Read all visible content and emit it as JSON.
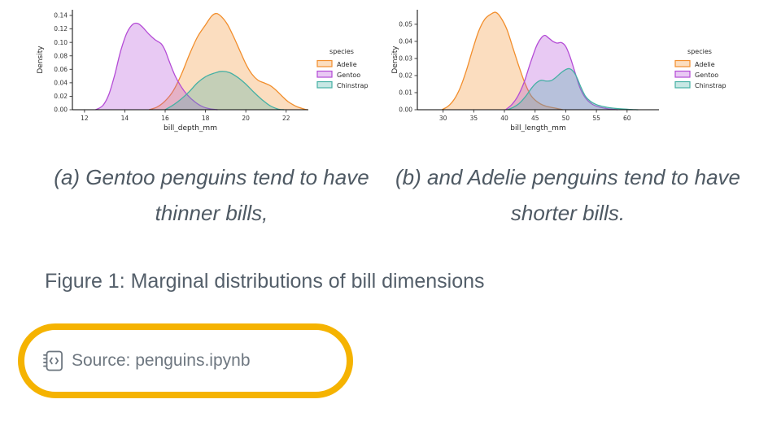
{
  "subcaptions": {
    "a": "(a) Gentoo penguins tend to have thinner bills,",
    "b": "(b) and Adelie penguins tend to have shorter bills."
  },
  "figure_caption": "Figure 1: Marginal distributions of bill dimensions",
  "source": {
    "icon": "journal-code-icon",
    "prefix": "Source:",
    "file": "penguins.ipynb"
  },
  "annotation": {
    "shape": "rounded-rectangle-highlight",
    "color": "#f5b301"
  },
  "chart_data": [
    {
      "type": "area",
      "kind": "kde-density",
      "xlabel": "bill_depth_mm",
      "ylabel": "Density",
      "xlim": [
        11.4,
        23.1
      ],
      "ylim": [
        0,
        0.1485
      ],
      "xticks": [
        12,
        14,
        16,
        18,
        20,
        22
      ],
      "yticks": [
        "0.00",
        "0.02",
        "0.04",
        "0.06",
        "0.08",
        "0.10",
        "0.12",
        "0.14"
      ],
      "legend_title": "species",
      "fill_opacity": 0.3,
      "series": [
        {
          "name": "Adelie",
          "color": "#f28e2c",
          "points": [
            [
              15.2,
              0
            ],
            [
              15.6,
              0.004
            ],
            [
              16.0,
              0.013
            ],
            [
              16.4,
              0.028
            ],
            [
              16.8,
              0.052
            ],
            [
              17.2,
              0.082
            ],
            [
              17.6,
              0.108
            ],
            [
              18.0,
              0.126
            ],
            [
              18.3,
              0.139
            ],
            [
              18.55,
              0.143
            ],
            [
              18.8,
              0.138
            ],
            [
              19.1,
              0.126
            ],
            [
              19.4,
              0.108
            ],
            [
              19.7,
              0.088
            ],
            [
              20.0,
              0.068
            ],
            [
              20.3,
              0.053
            ],
            [
              20.6,
              0.044
            ],
            [
              20.9,
              0.04
            ],
            [
              21.2,
              0.036
            ],
            [
              21.5,
              0.029
            ],
            [
              21.8,
              0.02
            ],
            [
              22.1,
              0.012
            ],
            [
              22.5,
              0.005
            ],
            [
              22.9,
              0.001
            ],
            [
              23.05,
              0
            ]
          ]
        },
        {
          "name": "Gentoo",
          "color": "#b44bd6",
          "points": [
            [
              12.55,
              0
            ],
            [
              12.9,
              0.006
            ],
            [
              13.2,
              0.022
            ],
            [
              13.5,
              0.052
            ],
            [
              13.8,
              0.088
            ],
            [
              14.1,
              0.114
            ],
            [
              14.4,
              0.127
            ],
            [
              14.65,
              0.128
            ],
            [
              14.9,
              0.122
            ],
            [
              15.2,
              0.112
            ],
            [
              15.5,
              0.104
            ],
            [
              15.8,
              0.098
            ],
            [
              16.0,
              0.088
            ],
            [
              16.2,
              0.072
            ],
            [
              16.5,
              0.05
            ],
            [
              16.8,
              0.034
            ],
            [
              17.1,
              0.022
            ],
            [
              17.5,
              0.011
            ],
            [
              17.9,
              0.004
            ],
            [
              18.3,
              0.001
            ],
            [
              18.6,
              0
            ]
          ]
        },
        {
          "name": "Chinstrap",
          "color": "#45b0a4",
          "points": [
            [
              16.0,
              0
            ],
            [
              16.4,
              0.007
            ],
            [
              16.8,
              0.016
            ],
            [
              17.2,
              0.027
            ],
            [
              17.6,
              0.04
            ],
            [
              18.0,
              0.049
            ],
            [
              18.4,
              0.054
            ],
            [
              18.8,
              0.057
            ],
            [
              19.2,
              0.055
            ],
            [
              19.6,
              0.048
            ],
            [
              20.0,
              0.038
            ],
            [
              20.4,
              0.026
            ],
            [
              20.8,
              0.015
            ],
            [
              21.2,
              0.006
            ],
            [
              21.6,
              0.001
            ],
            [
              21.9,
              0
            ]
          ]
        }
      ]
    },
    {
      "type": "area",
      "kind": "kde-density",
      "xlabel": "bill_length_mm",
      "ylabel": "Density",
      "xlim": [
        25.8,
        65.2
      ],
      "ylim": [
        0,
        0.0585
      ],
      "xticks": [
        30,
        35,
        40,
        45,
        50,
        55,
        60
      ],
      "yticks": [
        "0.00",
        "0.01",
        "0.02",
        "0.03",
        "0.04",
        "0.05"
      ],
      "legend_title": "species",
      "fill_opacity": 0.3,
      "series": [
        {
          "name": "Adelie",
          "color": "#f28e2c",
          "points": [
            [
              29.8,
              0
            ],
            [
              30.8,
              0.002
            ],
            [
              31.8,
              0.006
            ],
            [
              32.8,
              0.013
            ],
            [
              33.8,
              0.023
            ],
            [
              34.8,
              0.035
            ],
            [
              35.8,
              0.046
            ],
            [
              36.8,
              0.053
            ],
            [
              37.8,
              0.056
            ],
            [
              38.6,
              0.057
            ],
            [
              39.4,
              0.054
            ],
            [
              40.4,
              0.047
            ],
            [
              41.4,
              0.036
            ],
            [
              42.4,
              0.025
            ],
            [
              43.4,
              0.015
            ],
            [
              44.4,
              0.008
            ],
            [
              45.6,
              0.004
            ],
            [
              46.8,
              0.002
            ],
            [
              48.2,
              0.001
            ],
            [
              49.5,
              0
            ]
          ]
        },
        {
          "name": "Gentoo",
          "color": "#b44bd6",
          "points": [
            [
              40.2,
              0
            ],
            [
              41.2,
              0.003
            ],
            [
              42.2,
              0.008
            ],
            [
              43.2,
              0.016
            ],
            [
              44.2,
              0.027
            ],
            [
              45.2,
              0.037
            ],
            [
              46.0,
              0.042
            ],
            [
              46.6,
              0.0435
            ],
            [
              47.2,
              0.042
            ],
            [
              47.9,
              0.04
            ],
            [
              48.6,
              0.039
            ],
            [
              49.3,
              0.0393
            ],
            [
              50.0,
              0.037
            ],
            [
              50.7,
              0.031
            ],
            [
              51.5,
              0.022
            ],
            [
              52.3,
              0.013
            ],
            [
              53.2,
              0.007
            ],
            [
              54.2,
              0.0035
            ],
            [
              55.5,
              0.0015
            ],
            [
              57.0,
              0.0005
            ],
            [
              58.5,
              0
            ]
          ]
        },
        {
          "name": "Chinstrap",
          "color": "#45b0a4",
          "points": [
            [
              40.5,
              0
            ],
            [
              41.5,
              0.0015
            ],
            [
              42.5,
              0.004
            ],
            [
              43.5,
              0.008
            ],
            [
              44.5,
              0.013
            ],
            [
              45.3,
              0.016
            ],
            [
              46.0,
              0.0172
            ],
            [
              46.8,
              0.0168
            ],
            [
              47.6,
              0.017
            ],
            [
              48.4,
              0.019
            ],
            [
              49.2,
              0.0215
            ],
            [
              50.0,
              0.0235
            ],
            [
              50.6,
              0.024
            ],
            [
              51.2,
              0.0225
            ],
            [
              51.8,
              0.019
            ],
            [
              52.5,
              0.013
            ],
            [
              53.2,
              0.008
            ],
            [
              54.0,
              0.005
            ],
            [
              55.0,
              0.003
            ],
            [
              56.2,
              0.0018
            ],
            [
              57.5,
              0.001
            ],
            [
              59.0,
              0.0005
            ],
            [
              60.5,
              0.0002
            ],
            [
              61.8,
              0
            ]
          ]
        }
      ]
    }
  ]
}
